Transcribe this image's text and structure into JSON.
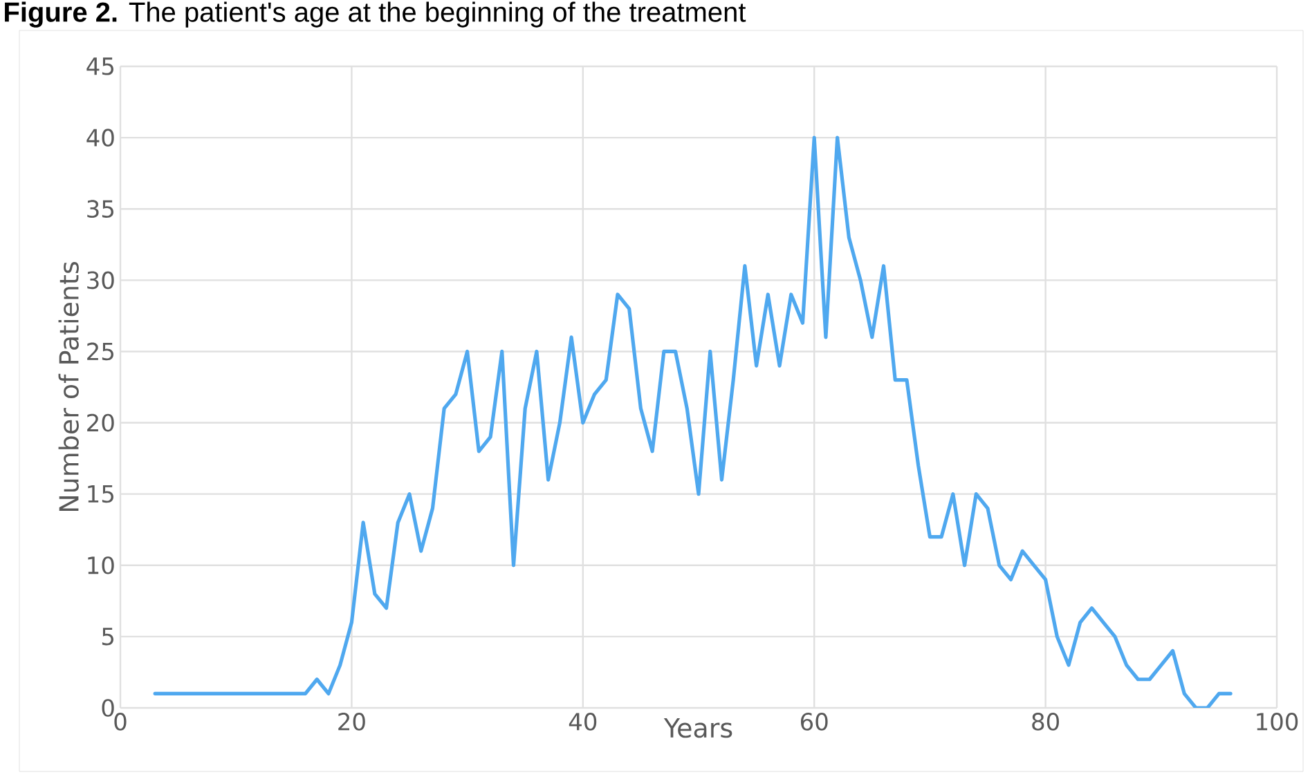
{
  "chart_data": {
    "type": "line",
    "title": "**Figure 2.** The patient's age at the beginning of the treatment",
    "xlabel": "Years",
    "ylabel": "Number of Patients",
    "x": [
      3,
      4,
      5,
      6,
      7,
      8,
      9,
      10,
      11,
      12,
      13,
      14,
      15,
      16,
      17,
      18,
      19,
      20,
      21,
      22,
      23,
      24,
      25,
      26,
      27,
      28,
      29,
      30,
      31,
      32,
      33,
      34,
      35,
      36,
      37,
      38,
      39,
      40,
      41,
      42,
      43,
      44,
      45,
      46,
      47,
      48,
      49,
      50,
      51,
      52,
      53,
      54,
      55,
      56,
      57,
      58,
      59,
      60,
      61,
      62,
      63,
      64,
      65,
      66,
      67,
      68,
      69,
      70,
      71,
      72,
      73,
      74,
      75,
      76,
      77,
      78,
      79,
      80,
      81,
      82,
      83,
      84,
      85,
      86,
      87,
      88,
      89,
      90,
      91,
      92,
      93,
      94,
      95,
      96
    ],
    "series": [
      {
        "color": "#4fa8ef",
        "values": [
          1,
          1,
          1,
          1,
          1,
          1,
          1,
          1,
          1,
          1,
          1,
          1,
          1,
          1,
          2,
          1,
          3,
          6,
          13,
          8,
          7,
          13,
          15,
          11,
          14,
          21,
          22,
          25,
          18,
          19,
          25,
          10,
          21,
          25,
          16,
          20,
          26,
          20,
          22,
          23,
          29,
          28,
          21,
          18,
          25,
          25,
          21,
          15,
          25,
          16,
          23,
          31,
          24,
          29,
          24,
          29,
          27,
          40,
          26,
          40,
          33,
          30,
          26,
          31,
          23,
          23,
          17,
          12,
          12,
          15,
          10,
          15,
          14,
          10,
          9,
          11,
          10,
          9,
          5,
          3,
          6,
          7,
          6,
          5,
          3,
          2,
          2,
          3,
          4,
          1,
          0,
          0,
          1,
          1
        ]
      }
    ],
    "xlim": [
      0,
      100
    ],
    "ylim": [
      0,
      45
    ],
    "xticks": [
      0,
      20,
      40,
      60,
      80,
      100
    ],
    "yticks": [
      0,
      5,
      10,
      15,
      20,
      25,
      30,
      35,
      40,
      45
    ],
    "grid": true,
    "marker": "none",
    "line_style": "solid"
  }
}
